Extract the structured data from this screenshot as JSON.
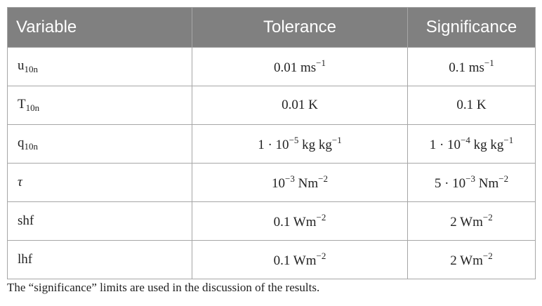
{
  "table": {
    "header": [
      "Variable",
      "Tolerance",
      "Significance"
    ],
    "rows": [
      [
        [
          {
            "text": "u"
          },
          {
            "sub": "10n"
          }
        ],
        [
          {
            "text": "0.01 ms"
          },
          {
            "sup": "−1"
          }
        ],
        [
          {
            "text": "0.1 ms"
          },
          {
            "sup": "−1"
          }
        ]
      ],
      [
        [
          {
            "text": "T"
          },
          {
            "sub": "10n"
          }
        ],
        [
          {
            "text": "0.01 K"
          }
        ],
        [
          {
            "text": "0.1 K"
          }
        ]
      ],
      [
        [
          {
            "text": "q"
          },
          {
            "sub": "10n"
          }
        ],
        [
          {
            "text": "1 · 10"
          },
          {
            "sup": "−5"
          },
          {
            "text": " kg kg"
          },
          {
            "sup": "−1"
          }
        ],
        [
          {
            "text": "1 · 10"
          },
          {
            "sup": "−4"
          },
          {
            "text": " kg kg"
          },
          {
            "sup": "−1"
          }
        ]
      ],
      [
        [
          {
            "text": "τ",
            "italic": true
          }
        ],
        [
          {
            "text": "10"
          },
          {
            "sup": "−3"
          },
          {
            "text": " Nm"
          },
          {
            "sup": "−2"
          }
        ],
        [
          {
            "text": "5 · 10"
          },
          {
            "sup": "−3"
          },
          {
            "text": " Nm"
          },
          {
            "sup": "−2"
          }
        ]
      ],
      [
        [
          {
            "text": "shf"
          }
        ],
        [
          {
            "text": "0.1 Wm"
          },
          {
            "sup": "−2"
          }
        ],
        [
          {
            "text": "2 Wm"
          },
          {
            "sup": "−2"
          }
        ]
      ],
      [
        [
          {
            "text": "lhf"
          }
        ],
        [
          {
            "text": "0.1 Wm"
          },
          {
            "sup": "−2"
          }
        ],
        [
          {
            "text": "2 Wm"
          },
          {
            "sup": "−2"
          }
        ]
      ]
    ]
  },
  "caption": "The “significance” limits are used in the discussion of the results."
}
